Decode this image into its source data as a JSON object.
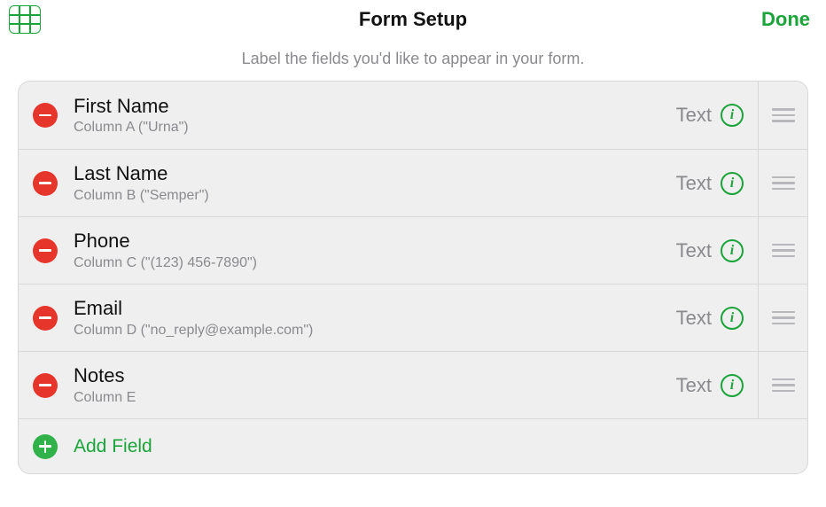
{
  "header": {
    "title": "Form Setup",
    "done_label": "Done"
  },
  "subtitle": "Label the fields you'd like to appear in your form.",
  "type_label": "Text",
  "add_field_label": "Add Field",
  "fields": [
    {
      "name": "First Name",
      "column": "Column A (\"Urna\")"
    },
    {
      "name": "Last Name",
      "column": "Column B (\"Semper\")"
    },
    {
      "name": "Phone",
      "column": "Column C (\"(123) 456-7890\")"
    },
    {
      "name": "Email",
      "column": "Column D (\"no_reply@example.com\")"
    },
    {
      "name": "Notes",
      "column": "Column E"
    }
  ],
  "colors": {
    "accent_green": "#1aa43a",
    "remove_red": "#e6352b",
    "panel_bg": "#efeff0",
    "divider": "#d8d8da",
    "text_primary": "#111111",
    "text_secondary": "#8a8a8e",
    "handle_gray": "#b8b8bc"
  }
}
